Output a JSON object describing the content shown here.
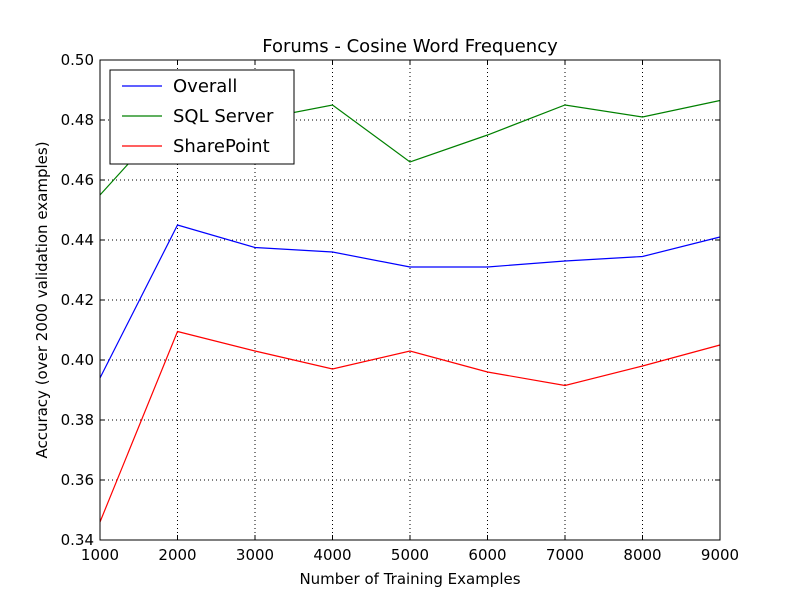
{
  "chart_data": {
    "type": "line",
    "title": "Forums - Cosine Word Frequency",
    "xlabel": "Number of Training Examples",
    "ylabel": "Accuracy (over 2000 validation examples)",
    "xlim": [
      1000,
      9000
    ],
    "ylim": [
      0.34,
      0.5
    ],
    "xticks": [
      "1000",
      "2000",
      "3000",
      "4000",
      "5000",
      "6000",
      "7000",
      "8000",
      "9000"
    ],
    "yticks": [
      "0.34",
      "0.36",
      "0.38",
      "0.40",
      "0.42",
      "0.44",
      "0.46",
      "0.48",
      "0.50"
    ],
    "grid": true,
    "legend_position": "top-left",
    "x": [
      1000,
      2000,
      3000,
      4000,
      5000,
      6000,
      7000,
      8000,
      9000
    ],
    "series": [
      {
        "name": "Overall",
        "color": "#0000ff",
        "values": [
          0.394,
          0.445,
          0.4375,
          0.436,
          0.431,
          0.431,
          0.433,
          0.4345,
          0.441
        ]
      },
      {
        "name": "SQL Server",
        "color": "#008000",
        "values": [
          0.455,
          0.4835,
          0.48,
          0.485,
          0.466,
          0.475,
          0.485,
          0.481,
          0.4865
        ]
      },
      {
        "name": "SharePoint",
        "color": "#ff0000",
        "values": [
          0.346,
          0.4095,
          0.403,
          0.397,
          0.403,
          0.396,
          0.3915,
          0.398,
          0.405
        ]
      }
    ]
  }
}
